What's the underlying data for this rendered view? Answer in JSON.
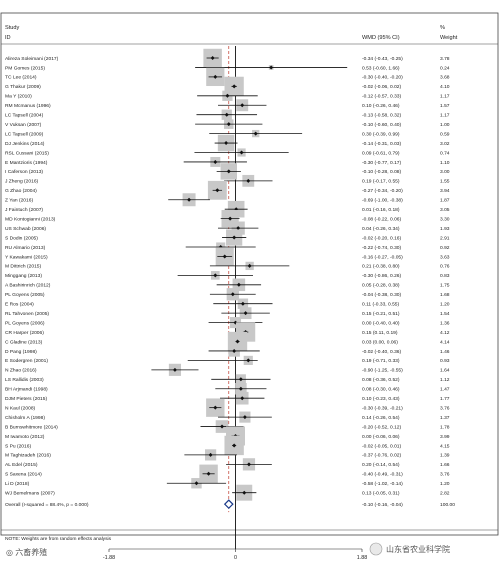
{
  "chart_data": {
    "type": "forest",
    "header": {
      "study_label": "Study",
      "id_label": "ID",
      "effect_label": "WMD (95% CI)",
      "weight_label": "%",
      "weight_sub_label": "Weight"
    },
    "xlim": [
      -1.88,
      1.88
    ],
    "xticks": [
      {
        "value": -1.88,
        "label": "-1.88"
      },
      {
        "value": 0,
        "label": "0"
      },
      {
        "value": 1.88,
        "label": "1.88"
      }
    ],
    "overall_line": -0.1,
    "studies": [
      {
        "name": "Alireza Soleimani (2017)",
        "es": -0.34,
        "lo": -0.43,
        "hi": -0.25,
        "ci_text": "-0.34 (-0.43, -0.25)",
        "weight": "3.78"
      },
      {
        "name": "PM Gomes (2015)",
        "es": 0.53,
        "lo": -0.6,
        "hi": 1.66,
        "ci_text": "0.53 (-0.60, 1.66)",
        "weight": "0.24"
      },
      {
        "name": "TC Lee (2014)",
        "es": -0.3,
        "lo": -0.4,
        "hi": -0.2,
        "ci_text": "-0.30 (-0.40, -0.20)",
        "weight": "3.68"
      },
      {
        "name": "G Thakur (2009)",
        "es": -0.02,
        "lo": -0.06,
        "hi": 0.02,
        "ci_text": "-0.02 (-0.06, 0.02)",
        "weight": "4.10"
      },
      {
        "name": "Ma Y (2010)",
        "es": -0.12,
        "lo": -0.57,
        "hi": 0.33,
        "ci_text": "-0.12 (-0.57, 0.33)",
        "weight": "1.17"
      },
      {
        "name": "RM Mcmanus (1996)",
        "es": 0.1,
        "lo": -0.26,
        "hi": 0.46,
        "ci_text": "0.10 (-0.26, 0.46)",
        "weight": "1.57"
      },
      {
        "name": "LC Tapsell (2004)",
        "es": -0.13,
        "lo": -0.58,
        "hi": 0.32,
        "ci_text": "-0.13 (-0.58, 0.32)",
        "weight": "1.17"
      },
      {
        "name": "V Vuksan (2007)",
        "es": -0.1,
        "lo": -0.6,
        "hi": 0.4,
        "ci_text": "-0.10 (-0.60, 0.40)",
        "weight": "1.00"
      },
      {
        "name": "LC Tapsell (2009)",
        "es": 0.3,
        "lo": -0.39,
        "hi": 0.99,
        "ci_text": "0.30 (-0.39, 0.99)",
        "weight": "0.59"
      },
      {
        "name": "DJ Jenkins (2014)",
        "es": -0.14,
        "lo": -0.31,
        "hi": 0.03,
        "ci_text": "-0.14 (-0.31, 0.03)",
        "weight": "3.02"
      },
      {
        "name": "RSL Cussani (2015)",
        "es": 0.09,
        "lo": -0.61,
        "hi": 0.79,
        "ci_text": "0.09 (-0.61, 0.79)",
        "weight": "0.74"
      },
      {
        "name": "E Mantzioris (1994)",
        "es": -0.3,
        "lo": -0.77,
        "hi": 0.17,
        "ci_text": "-0.30 (-0.77, 0.17)",
        "weight": "1.10"
      },
      {
        "name": "I Caferson (2013)",
        "es": -0.1,
        "lo": -0.28,
        "hi": 0.08,
        "ci_text": "-0.10 (-0.28, 0.08)",
        "weight": "3.00"
      },
      {
        "name": "J Zheng (2016)",
        "es": 0.19,
        "lo": -0.17,
        "hi": 0.55,
        "ci_text": "0.19 (-0.17, 0.55)",
        "weight": "1.55"
      },
      {
        "name": "G Zhao (2004)",
        "es": -0.27,
        "lo": -0.34,
        "hi": -0.2,
        "ci_text": "-0.27 (-0.34, -0.20)",
        "weight": "3.94"
      },
      {
        "name": "Z Yan (2016)",
        "es": -0.69,
        "lo": -1.0,
        "hi": -0.38,
        "ci_text": "-0.69 (-1.00, -0.38)",
        "weight": "1.87"
      },
      {
        "name": "J Faintuch (2007)",
        "es": 0.01,
        "lo": -0.16,
        "hi": 0.18,
        "ci_text": "0.01 (-0.16, 0.18)",
        "weight": "3.05"
      },
      {
        "name": "MD Kontogianni (2013)",
        "es": -0.08,
        "lo": -0.22,
        "hi": 0.06,
        "ci_text": "-0.08 (-0.22, 0.06)",
        "weight": "3.30"
      },
      {
        "name": "US Schwab (2006)",
        "es": 0.04,
        "lo": -0.26,
        "hi": 0.34,
        "ci_text": "0.04 (-0.26, 0.34)",
        "weight": "1.93"
      },
      {
        "name": "S Dodin (2005)",
        "es": -0.02,
        "lo": -0.2,
        "hi": 0.16,
        "ci_text": "-0.02 (-0.20, 0.16)",
        "weight": "2.91"
      },
      {
        "name": "RU Almario (2013)",
        "es": -0.22,
        "lo": -0.74,
        "hi": 0.3,
        "ci_text": "-0.22 (-0.74, 0.30)",
        "weight": "0.92"
      },
      {
        "name": "Y Kawakami (2015)",
        "es": -0.16,
        "lo": -0.27,
        "hi": -0.05,
        "ci_text": "-0.16 (-0.27, -0.05)",
        "weight": "3.63"
      },
      {
        "name": "M Dittrich (2015)",
        "es": 0.21,
        "lo": -0.38,
        "hi": 0.8,
        "ci_text": "0.21 (-0.38, 0.80)",
        "weight": "0.76"
      },
      {
        "name": "Minggang (2013)",
        "es": -0.3,
        "lo": -0.86,
        "hi": 0.26,
        "ci_text": "-0.30 (-0.86, 0.26)",
        "weight": "0.83"
      },
      {
        "name": "A Bashirinrich (2012)",
        "es": 0.05,
        "lo": -0.28,
        "hi": 0.38,
        "ci_text": "0.05 (-0.28, 0.38)",
        "weight": "1.75"
      },
      {
        "name": "PL Goyens (2005)",
        "es": -0.04,
        "lo": -0.38,
        "hi": 0.3,
        "ci_text": "-0.04 (-0.38, 0.30)",
        "weight": "1.68"
      },
      {
        "name": "E Ros (2004)",
        "es": 0.11,
        "lo": -0.33,
        "hi": 0.55,
        "ci_text": "0.11 (-0.33, 0.55)",
        "weight": "1.20"
      },
      {
        "name": "RL Tahvonen (2005)",
        "es": 0.15,
        "lo": -0.21,
        "hi": 0.51,
        "ci_text": "0.15 (-0.21, 0.51)",
        "weight": "1.54"
      },
      {
        "name": "PL Goyens (2006)",
        "es": 0.0,
        "lo": -0.4,
        "hi": 0.4,
        "ci_text": "0.00 (-0.40, 0.40)",
        "weight": "1.36"
      },
      {
        "name": "CR Harper (2006)",
        "es": 0.15,
        "lo": 0.11,
        "hi": 0.19,
        "ci_text": "0.15 (0.11, 0.19)",
        "weight": "4.12"
      },
      {
        "name": "C Gladine (2013)",
        "es": 0.03,
        "lo": 0.0,
        "hi": 0.06,
        "ci_text": "0.03 (0.00, 0.06)",
        "weight": "4.14"
      },
      {
        "name": "D Pang (1998)",
        "es": -0.02,
        "lo": -0.4,
        "hi": 0.36,
        "ci_text": "-0.02 (-0.40, 0.36)",
        "weight": "1.46"
      },
      {
        "name": "E Sodergren (2001)",
        "es": 0.19,
        "lo": -0.71,
        "hi": 0.33,
        "ci_text": "0.19 (-0.71, 0.33)",
        "weight": "0.93"
      },
      {
        "name": "N Zhao (2016)",
        "es": -0.9,
        "lo": -1.25,
        "hi": -0.55,
        "ci_text": "-0.90 (-1.25, -0.55)",
        "weight": "1.64"
      },
      {
        "name": "LS Rallidis (2003)",
        "es": 0.08,
        "lo": -0.36,
        "hi": 0.52,
        "ci_text": "0.08 (-0.36, 0.52)",
        "weight": "1.12"
      },
      {
        "name": "BH Arjmandi (1998)",
        "es": 0.08,
        "lo": -0.3,
        "hi": 0.46,
        "ci_text": "0.08 (-0.30, 0.46)",
        "weight": "1.47"
      },
      {
        "name": "DJM Pieters (2015)",
        "es": 0.1,
        "lo": -0.23,
        "hi": 0.43,
        "ci_text": "0.10 (-0.23, 0.43)",
        "weight": "1.77"
      },
      {
        "name": "N Kaul (2008)",
        "es": -0.3,
        "lo": -0.39,
        "hi": -0.21,
        "ci_text": "-0.30 (-0.39, -0.21)",
        "weight": "3.76"
      },
      {
        "name": "Chisholm A (1998)",
        "es": 0.14,
        "lo": -0.26,
        "hi": 0.54,
        "ci_text": "0.14 (-0.26, 0.54)",
        "weight": "1.37"
      },
      {
        "name": "B Burnswhitmore (2014)",
        "es": -0.2,
        "lo": -0.52,
        "hi": 0.12,
        "ci_text": "-0.20 (-0.52, 0.12)",
        "weight": "1.78"
      },
      {
        "name": "M Iwamoto (2012)",
        "es": 0.0,
        "lo": -0.06,
        "hi": 0.06,
        "ci_text": "0.00 (-0.06, 0.06)",
        "weight": "3.99"
      },
      {
        "name": "S Pu (2016)",
        "es": -0.02,
        "lo": -0.05,
        "hi": 0.01,
        "ci_text": "-0.02 (-0.05, 0.01)",
        "weight": "4.15"
      },
      {
        "name": "M Taghizadeh (2016)",
        "es": -0.37,
        "lo": -0.76,
        "hi": 0.02,
        "ci_text": "-0.37 (-0.76, 0.02)",
        "weight": "1.39"
      },
      {
        "name": "AL Edel (2015)",
        "es": 0.2,
        "lo": -0.14,
        "hi": 0.54,
        "ci_text": "0.20 (-0.14, 0.54)",
        "weight": "1.66"
      },
      {
        "name": "S Saxena (2014)",
        "es": -0.4,
        "lo": -0.49,
        "hi": -0.31,
        "ci_text": "-0.40 (-0.49, -0.31)",
        "weight": "3.76"
      },
      {
        "name": "Li D (2018)",
        "es": -0.58,
        "lo": -1.02,
        "hi": -0.14,
        "ci_text": "-0.58 (-1.02, -0.14)",
        "weight": "1.20"
      },
      {
        "name": "WJ Bemelmans (2007)",
        "es": 0.13,
        "lo": -0.05,
        "hi": 0.31,
        "ci_text": "0.13 (-0.05, 0.31)",
        "weight": "2.82"
      }
    ],
    "overall": {
      "label": "Overall  (I-squared = 88.4%, p = 0.000)",
      "es": -0.1,
      "lo": -0.16,
      "hi": -0.04,
      "ci_text": "-0.10 (-0.16, -0.04)",
      "weight": "100.00"
    },
    "note": "NOTE: Weights are from random effects analysis"
  },
  "watermark": {
    "left_text": "◎ 六畜养殖",
    "right_text": "山东省农业科学院"
  },
  "colors": {
    "box": "#c8c8c8",
    "line": "#111111",
    "diamond": "#1a3a8a",
    "dashed_line": "#c0392b"
  }
}
